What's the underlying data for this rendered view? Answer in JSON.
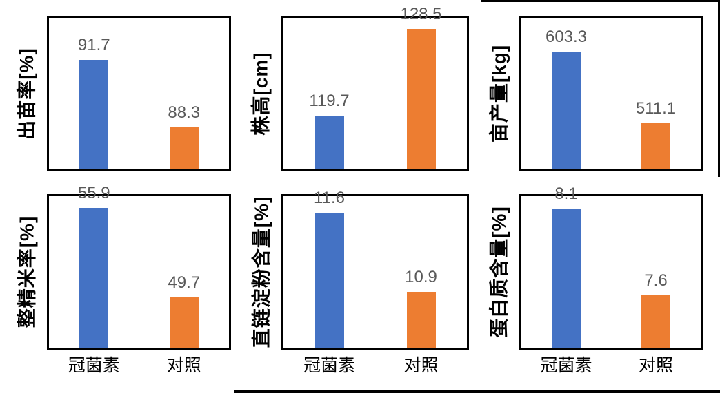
{
  "colors": {
    "series": [
      "#4472C4",
      "#ED7D31"
    ],
    "value_label": "#595959",
    "frame_border": "#000000",
    "axis_text": "#000000"
  },
  "categories": [
    "冠菌素",
    "对照"
  ],
  "chart_data": [
    {
      "type": "bar",
      "ylabel": "出苗率[%]",
      "categories": [
        "冠菌素",
        "对照"
      ],
      "values": [
        91.7,
        88.3
      ],
      "data_labels": [
        "91.7",
        "88.3"
      ],
      "ylim": [
        86.2,
        93.8
      ],
      "grid": false,
      "legend": false,
      "x_tick_labels_visible": false
    },
    {
      "type": "bar",
      "ylabel": "株高[cm]",
      "categories": [
        "冠菌素",
        "对照"
      ],
      "values": [
        119.7,
        128.5
      ],
      "data_labels": [
        "119.7",
        "128.5"
      ],
      "ylim": [
        114.3,
        129.6
      ],
      "grid": false,
      "legend": false,
      "x_tick_labels_visible": false
    },
    {
      "type": "bar",
      "ylabel": "亩产量[kg]",
      "categories": [
        "冠菌素",
        "对照"
      ],
      "values": [
        603.3,
        511.1
      ],
      "data_labels": [
        "603.3",
        "511.1"
      ],
      "ylim": [
        453,
        647
      ],
      "grid": false,
      "legend": false,
      "x_tick_labels_visible": false
    },
    {
      "type": "bar",
      "ylabel": "整精米率[%]",
      "categories": [
        "冠菌素",
        "对照"
      ],
      "values": [
        55.9,
        49.7
      ],
      "data_labels": [
        "55.9",
        "49.7"
      ],
      "ylim": [
        46.2,
        56.7
      ],
      "grid": false,
      "legend": false,
      "x_tick_labels_visible": true
    },
    {
      "type": "bar",
      "ylabel": "直链淀粉含量[%]",
      "categories": [
        "冠菌素",
        "对照"
      ],
      "values": [
        11.6,
        10.9
      ],
      "data_labels": [
        "11.6",
        "10.9"
      ],
      "ylim": [
        10.4,
        11.75
      ],
      "grid": false,
      "legend": false,
      "x_tick_labels_visible": true
    },
    {
      "type": "bar",
      "ylabel": "蛋白质含量[%]",
      "categories": [
        "冠菌素",
        "对照"
      ],
      "values": [
        8.1,
        7.6
      ],
      "data_labels": [
        "8.1",
        "7.6"
      ],
      "ylim": [
        7.3,
        8.17
      ],
      "grid": false,
      "legend": false,
      "x_tick_labels_visible": true
    }
  ]
}
